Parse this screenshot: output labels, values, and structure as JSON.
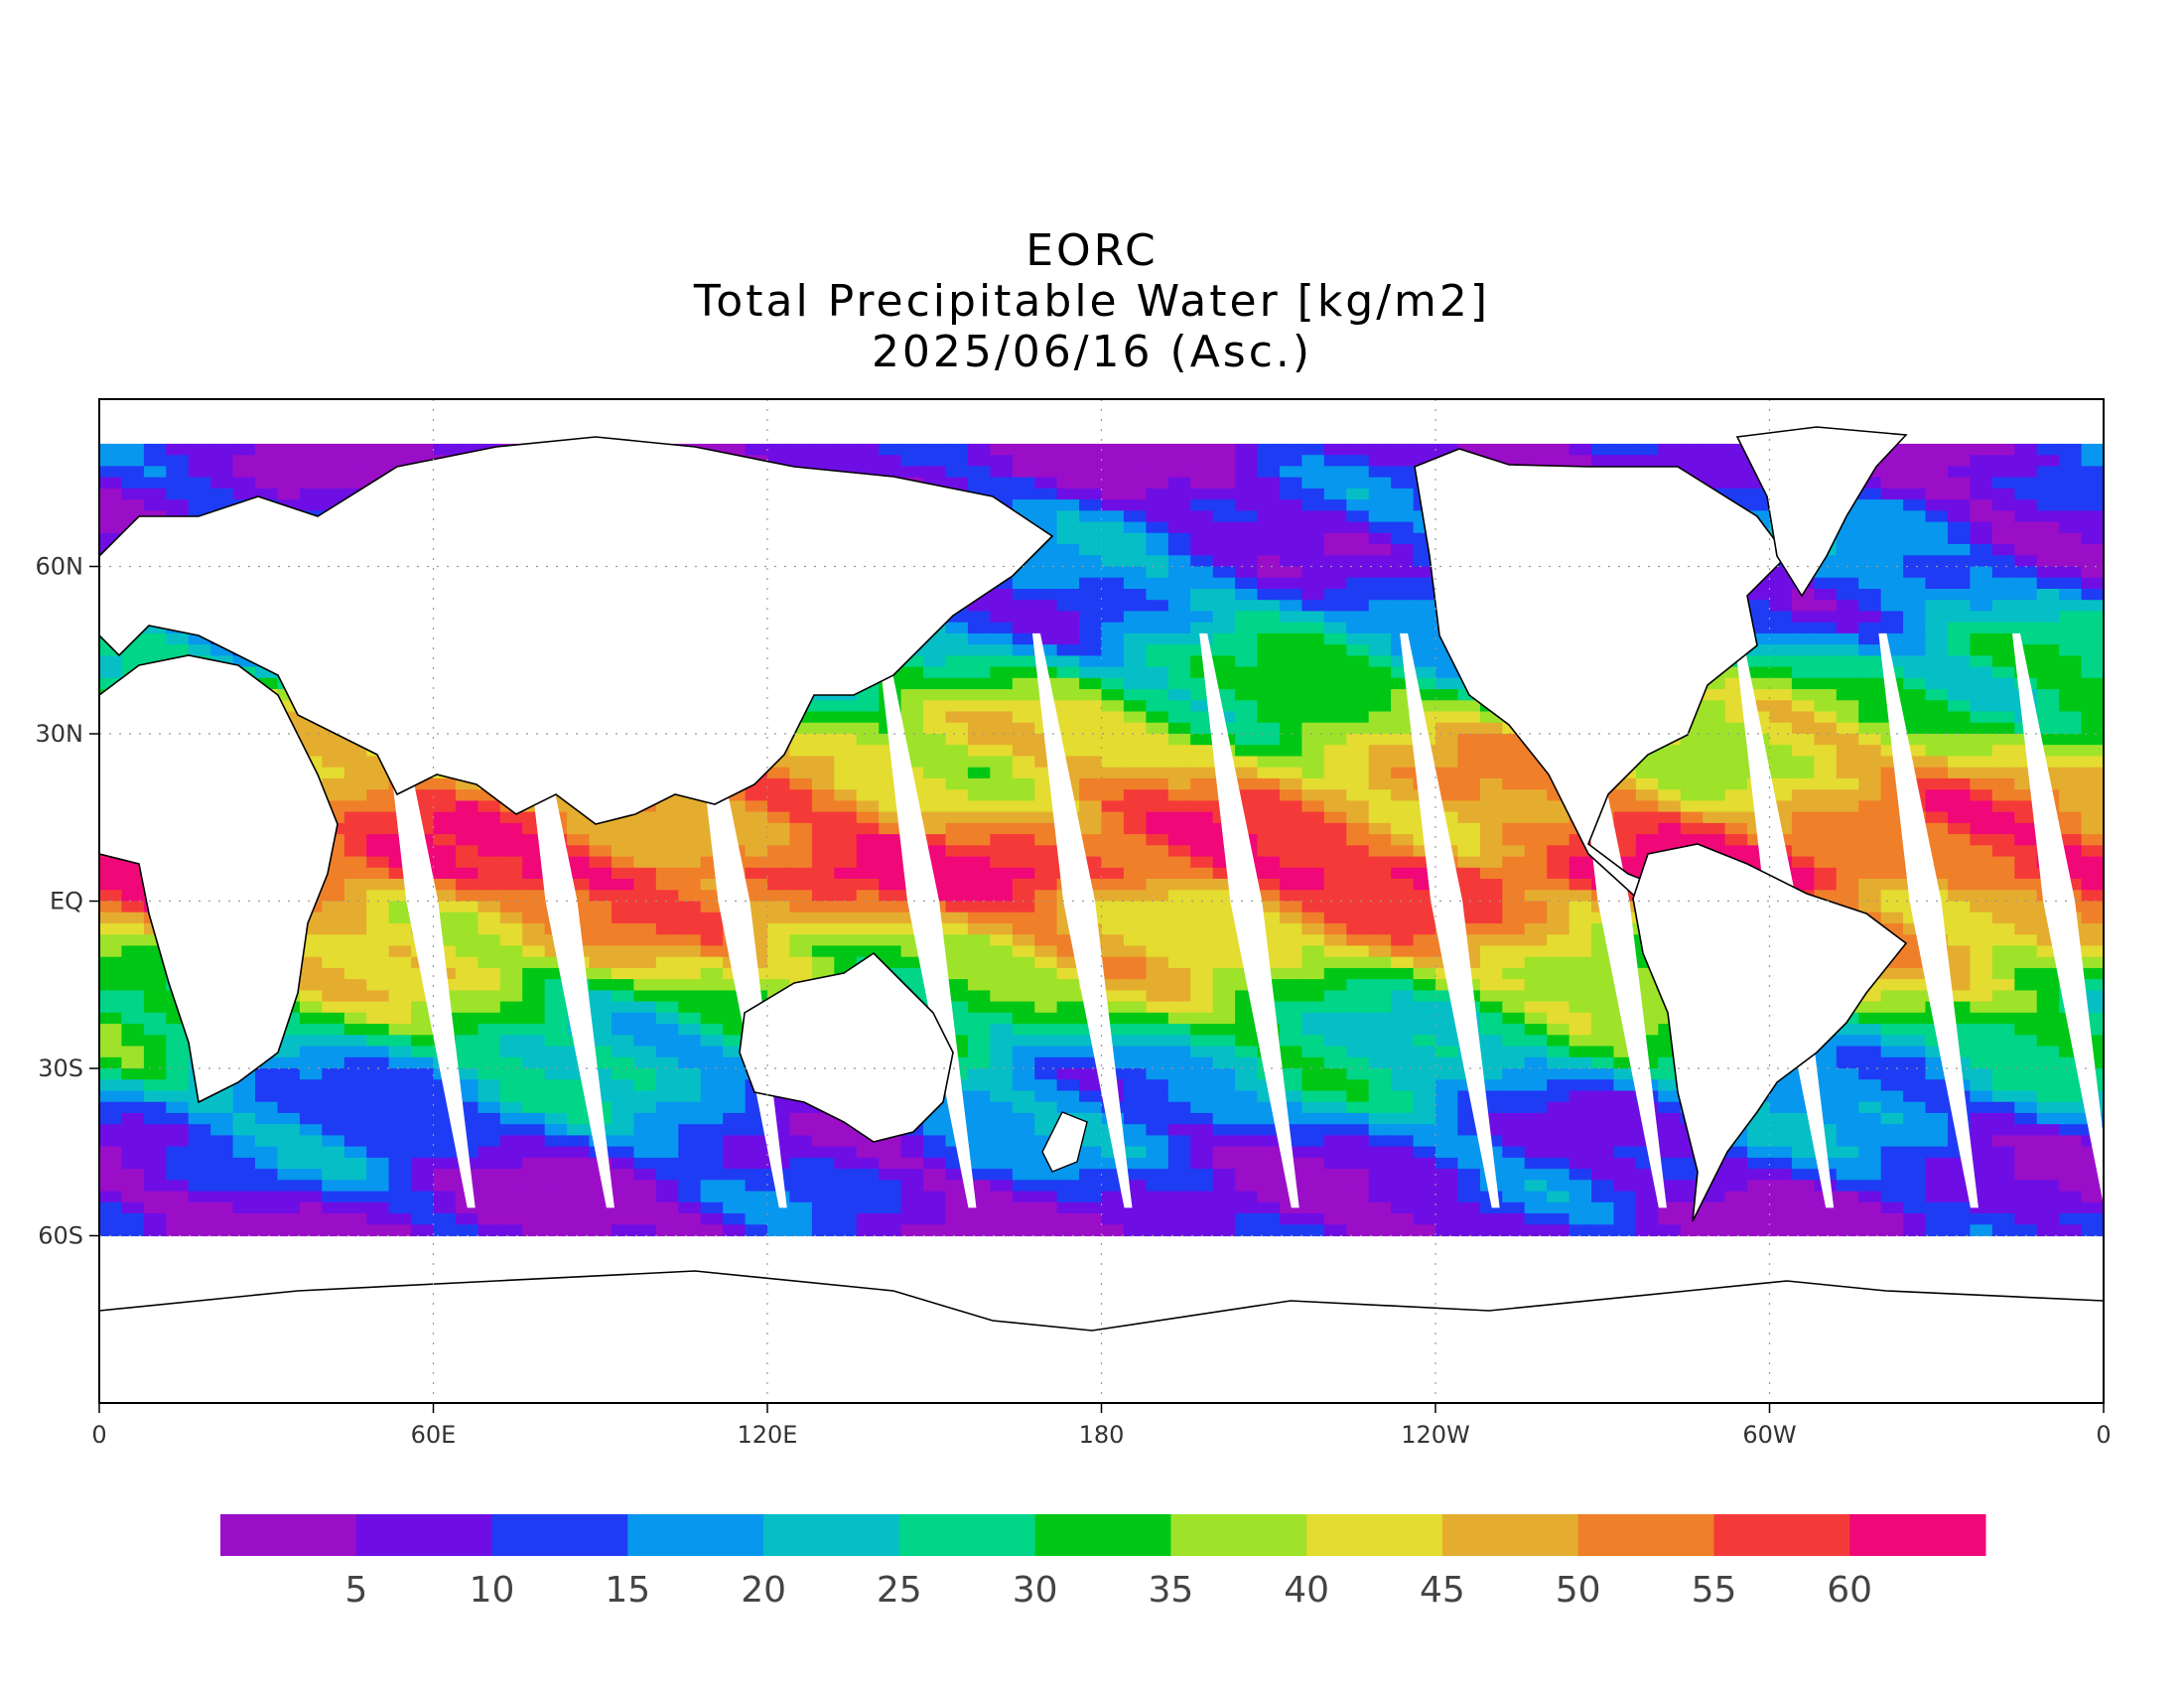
{
  "title": {
    "line1": "EORC",
    "line2": "Total Precipitable Water [kg/m2]",
    "line3": "2025/06/16 (Asc.)"
  },
  "map": {
    "projection": "equirectangular",
    "lon_range": [
      0,
      360
    ],
    "lat_range": [
      -90,
      90
    ],
    "x_ticks": [
      {
        "lon": 0,
        "label": "0"
      },
      {
        "lon": 60,
        "label": "60E"
      },
      {
        "lon": 120,
        "label": "120E"
      },
      {
        "lon": 180,
        "label": "180"
      },
      {
        "lon": 240,
        "label": "120W"
      },
      {
        "lon": 300,
        "label": "60W"
      },
      {
        "lon": 360,
        "label": "0"
      }
    ],
    "y_ticks": [
      {
        "lat": 60,
        "label": "60N"
      },
      {
        "lat": 30,
        "label": "30N"
      },
      {
        "lat": 0,
        "label": "EQ"
      },
      {
        "lat": -30,
        "label": "30S"
      },
      {
        "lat": -60,
        "label": "60S"
      }
    ],
    "gridlines": true,
    "data_coverage_lat": [
      -60,
      82
    ],
    "swath_gaps_lon_at_eq": [
      58,
      83,
      114,
      148,
      176,
      206,
      242,
      272,
      302,
      328,
      352
    ]
  },
  "colorbar": {
    "colors": [
      "#9a0ec8",
      "#6e0ee4",
      "#1f3cf5",
      "#0897ee",
      "#06bfc6",
      "#00d588",
      "#00c716",
      "#9ee32a",
      "#e4dc30",
      "#e5ad2f",
      "#f07f2a",
      "#f43a38",
      "#f00878"
    ],
    "labels": [
      "5",
      "10",
      "15",
      "20",
      "25",
      "30",
      "35",
      "40",
      "45",
      "50",
      "55",
      "60"
    ]
  },
  "chart_data": {
    "type": "heatmap",
    "title": "Total Precipitable Water [kg/m2]",
    "variable": "Total Precipitable Water",
    "units": "kg/m2",
    "date": "2025/06/16",
    "orbit": "Asc.",
    "color_scale_bins": [
      0,
      5,
      10,
      15,
      20,
      25,
      30,
      35,
      40,
      45,
      50,
      55,
      60,
      65
    ],
    "zonal_profile": [
      {
        "lat": 80,
        "value": 5
      },
      {
        "lat": 70,
        "value": 10
      },
      {
        "lat": 60,
        "value": 14
      },
      {
        "lat": 50,
        "value": 18
      },
      {
        "lat": 40,
        "value": 28
      },
      {
        "lat": 30,
        "value": 40
      },
      {
        "lat": 20,
        "value": 48
      },
      {
        "lat": 10,
        "value": 55
      },
      {
        "lat": 5,
        "value": 60
      },
      {
        "lat": 0,
        "value": 52
      },
      {
        "lat": -10,
        "value": 42
      },
      {
        "lat": -20,
        "value": 32
      },
      {
        "lat": -30,
        "value": 22
      },
      {
        "lat": -40,
        "value": 14
      },
      {
        "lat": -50,
        "value": 9
      },
      {
        "lat": -60,
        "value": 5
      }
    ]
  }
}
